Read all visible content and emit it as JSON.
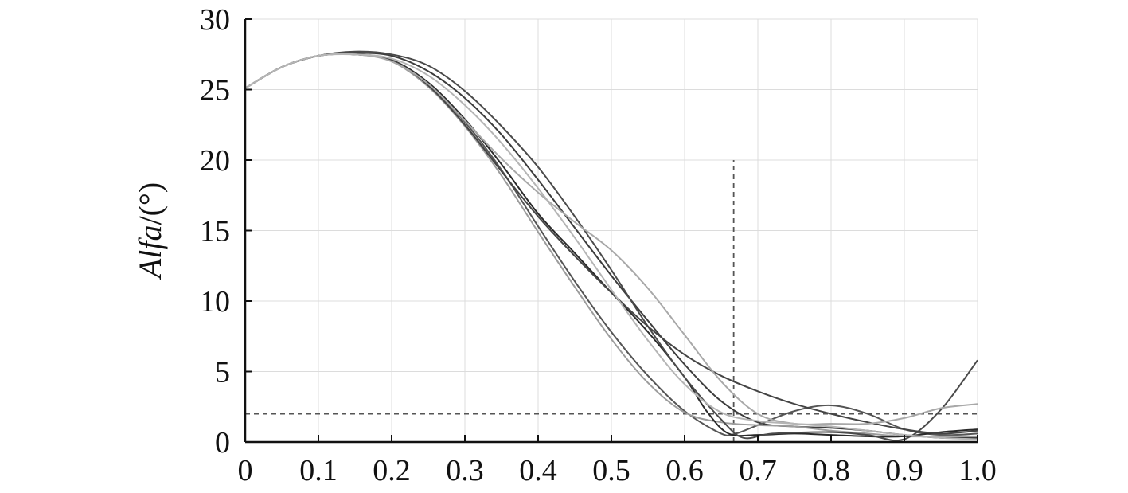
{
  "chart_data": {
    "type": "line",
    "title": "",
    "xlabel": "",
    "ylabel_italic": "Alfa",
    "ylabel_rest": "/(°)",
    "xlim": [
      0,
      1.0
    ],
    "ylim": [
      0,
      30
    ],
    "x_ticks": [
      "0",
      "0.1",
      "0.2",
      "0.3",
      "0.4",
      "0.5",
      "0.6",
      "0.7",
      "0.8",
      "0.9",
      "1.0"
    ],
    "y_ticks": [
      "0",
      "5",
      "10",
      "15",
      "20",
      "25",
      "30"
    ],
    "grid": true,
    "reference_lines": [
      {
        "orientation": "horizontal",
        "value": 2,
        "x_range": [
          0,
          1.0
        ],
        "style": "dashed"
      },
      {
        "orientation": "vertical",
        "value": 0.667,
        "y_range": [
          0,
          20
        ],
        "style": "dashed"
      }
    ],
    "series": [
      {
        "color": "#3c3c3c",
        "points": [
          [
            0,
            25.1
          ],
          [
            0.05,
            26.6
          ],
          [
            0.1,
            27.4
          ],
          [
            0.15,
            27.6
          ],
          [
            0.2,
            27.4
          ],
          [
            0.25,
            26.3
          ],
          [
            0.3,
            24.4
          ],
          [
            0.35,
            21.8
          ],
          [
            0.4,
            18.6
          ],
          [
            0.45,
            15.2
          ],
          [
            0.5,
            11.8
          ],
          [
            0.55,
            8.6
          ],
          [
            0.6,
            5.5
          ],
          [
            0.65,
            2.9
          ],
          [
            0.7,
            1.4
          ],
          [
            0.75,
            1.1
          ],
          [
            0.8,
            1.0
          ],
          [
            0.85,
            0.8
          ],
          [
            0.9,
            0.5
          ],
          [
            0.95,
            0.3
          ],
          [
            1.0,
            0.3
          ]
        ]
      },
      {
        "color": "#555555",
        "points": [
          [
            0,
            25.1
          ],
          [
            0.05,
            26.6
          ],
          [
            0.1,
            27.4
          ],
          [
            0.15,
            27.5
          ],
          [
            0.2,
            27.1
          ],
          [
            0.25,
            25.4
          ],
          [
            0.3,
            22.7
          ],
          [
            0.35,
            19.3
          ],
          [
            0.4,
            15.3
          ],
          [
            0.45,
            11.4
          ],
          [
            0.5,
            7.8
          ],
          [
            0.55,
            4.7
          ],
          [
            0.6,
            2.2
          ],
          [
            0.65,
            0.6
          ],
          [
            0.67,
            0.6
          ],
          [
            0.7,
            1.2
          ],
          [
            0.75,
            2.2
          ],
          [
            0.8,
            2.6
          ],
          [
            0.85,
            2.0
          ],
          [
            0.9,
            0.9
          ],
          [
            0.95,
            0.5
          ],
          [
            1.0,
            0.6
          ]
        ]
      },
      {
        "color": "#9c9c9c",
        "points": [
          [
            0,
            25.1
          ],
          [
            0.05,
            26.6
          ],
          [
            0.1,
            27.4
          ],
          [
            0.15,
            27.5
          ],
          [
            0.2,
            27.0
          ],
          [
            0.25,
            25.2
          ],
          [
            0.3,
            22.4
          ],
          [
            0.35,
            18.9
          ],
          [
            0.4,
            14.9
          ],
          [
            0.45,
            11.0
          ],
          [
            0.5,
            7.3
          ],
          [
            0.55,
            4.2
          ],
          [
            0.6,
            2.1
          ],
          [
            0.65,
            1.4
          ],
          [
            0.7,
            1.2
          ],
          [
            0.75,
            1.1
          ],
          [
            0.8,
            0.8
          ],
          [
            0.85,
            0.6
          ],
          [
            0.9,
            0.4
          ],
          [
            0.95,
            0.4
          ],
          [
            1.0,
            0.4
          ]
        ]
      },
      {
        "color": "#2a2a2a",
        "points": [
          [
            0,
            25.1
          ],
          [
            0.05,
            26.6
          ],
          [
            0.1,
            27.4
          ],
          [
            0.15,
            27.5
          ],
          [
            0.2,
            27.1
          ],
          [
            0.25,
            25.5
          ],
          [
            0.3,
            22.9
          ],
          [
            0.35,
            19.7
          ],
          [
            0.4,
            16.2
          ],
          [
            0.45,
            13.4
          ],
          [
            0.5,
            10.6
          ],
          [
            0.55,
            7.8
          ],
          [
            0.6,
            4.6
          ],
          [
            0.63,
            2.2
          ],
          [
            0.66,
            0.6
          ],
          [
            0.7,
            0.5
          ],
          [
            0.75,
            0.6
          ],
          [
            0.8,
            0.5
          ],
          [
            0.85,
            0.4
          ],
          [
            0.9,
            0.4
          ],
          [
            0.95,
            0.7
          ],
          [
            1.0,
            0.9
          ]
        ]
      },
      {
        "color": "#4a4a4a",
        "points": [
          [
            0,
            25.1
          ],
          [
            0.05,
            26.6
          ],
          [
            0.1,
            27.4
          ],
          [
            0.15,
            27.7
          ],
          [
            0.2,
            27.5
          ],
          [
            0.25,
            26.7
          ],
          [
            0.3,
            24.9
          ],
          [
            0.35,
            22.4
          ],
          [
            0.4,
            19.5
          ],
          [
            0.45,
            16.0
          ],
          [
            0.5,
            12.2
          ],
          [
            0.55,
            8.2
          ],
          [
            0.6,
            4.6
          ],
          [
            0.65,
            1.6
          ],
          [
            0.68,
            0.3
          ],
          [
            0.72,
            0.6
          ],
          [
            0.8,
            0.7
          ],
          [
            0.85,
            0.5
          ],
          [
            0.9,
            0.2
          ],
          [
            0.95,
            2.3
          ],
          [
            1.0,
            5.8
          ]
        ]
      },
      {
        "color": "#444444",
        "points": [
          [
            0,
            25.1
          ],
          [
            0.05,
            26.6
          ],
          [
            0.1,
            27.4
          ],
          [
            0.15,
            27.5
          ],
          [
            0.2,
            27.1
          ],
          [
            0.25,
            25.3
          ],
          [
            0.3,
            22.5
          ],
          [
            0.35,
            19.2
          ],
          [
            0.4,
            16.0
          ],
          [
            0.45,
            13.2
          ],
          [
            0.5,
            10.6
          ],
          [
            0.55,
            8.2
          ],
          [
            0.6,
            6.2
          ],
          [
            0.65,
            4.7
          ],
          [
            0.7,
            3.6
          ],
          [
            0.75,
            2.7
          ],
          [
            0.8,
            2.0
          ],
          [
            0.85,
            1.4
          ],
          [
            0.9,
            0.9
          ],
          [
            0.95,
            0.6
          ],
          [
            1.0,
            0.8
          ]
        ]
      },
      {
        "color": "#a8a8a8",
        "points": [
          [
            0,
            25.1
          ],
          [
            0.05,
            26.6
          ],
          [
            0.1,
            27.4
          ],
          [
            0.15,
            27.5
          ],
          [
            0.2,
            27.0
          ],
          [
            0.25,
            25.4
          ],
          [
            0.3,
            22.8
          ],
          [
            0.35,
            20.1
          ],
          [
            0.4,
            17.7
          ],
          [
            0.45,
            15.6
          ],
          [
            0.5,
            13.6
          ],
          [
            0.55,
            10.9
          ],
          [
            0.6,
            7.6
          ],
          [
            0.65,
            4.3
          ],
          [
            0.7,
            2.0
          ],
          [
            0.75,
            1.3
          ],
          [
            0.8,
            1.3
          ],
          [
            0.85,
            1.3
          ],
          [
            0.9,
            1.7
          ],
          [
            0.95,
            2.4
          ],
          [
            1.0,
            2.7
          ]
        ]
      },
      {
        "color": "#b5b5b5",
        "points": [
          [
            0,
            25.1
          ],
          [
            0.05,
            26.6
          ],
          [
            0.1,
            27.4
          ],
          [
            0.15,
            27.5
          ],
          [
            0.2,
            27.2
          ],
          [
            0.25,
            26.0
          ],
          [
            0.3,
            23.9
          ],
          [
            0.35,
            21.2
          ],
          [
            0.4,
            18.0
          ],
          [
            0.45,
            14.5
          ],
          [
            0.5,
            10.8
          ],
          [
            0.55,
            7.2
          ],
          [
            0.6,
            4.1
          ],
          [
            0.65,
            2.1
          ],
          [
            0.7,
            1.5
          ],
          [
            0.75,
            1.3
          ],
          [
            0.8,
            1.1
          ],
          [
            0.85,
            0.8
          ],
          [
            0.9,
            0.5
          ],
          [
            0.95,
            0.3
          ],
          [
            1.0,
            0.2
          ]
        ]
      }
    ]
  }
}
